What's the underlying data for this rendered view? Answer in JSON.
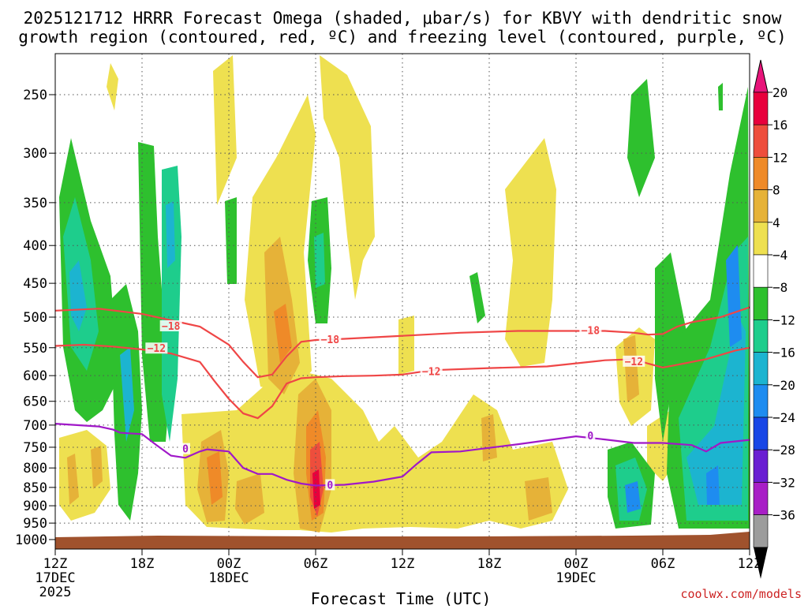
{
  "chart_data": {
    "type": "contour",
    "title_line1": "2025121712 HRRR Forecast Omega (shaded, μbar/s) for KBVY with dendritic snow",
    "title_line2": "growth region (contoured, red, ºC) and freezing level (contoured, purple, ºC)",
    "xlabel": "Forecast Time (UTC)",
    "credit": "coolwx.com/models",
    "xlim_hours": [
      0,
      48
    ],
    "ylim_hPa": [
      220,
      1030
    ],
    "x_ticks": [
      {
        "hour": 0,
        "label": "12Z",
        "date": "17DEC",
        "year": "2025"
      },
      {
        "hour": 6,
        "label": "18Z",
        "date": "",
        "year": ""
      },
      {
        "hour": 12,
        "label": "00Z",
        "date": "18DEC",
        "year": ""
      },
      {
        "hour": 18,
        "label": "06Z",
        "date": "",
        "year": ""
      },
      {
        "hour": 24,
        "label": "12Z",
        "date": "",
        "year": ""
      },
      {
        "hour": 30,
        "label": "18Z",
        "date": "",
        "year": ""
      },
      {
        "hour": 36,
        "label": "00Z",
        "date": "19DEC",
        "year": ""
      },
      {
        "hour": 42,
        "label": "06Z",
        "date": "",
        "year": ""
      },
      {
        "hour": 48,
        "label": "12Z",
        "date": "",
        "year": ""
      }
    ],
    "y_ticks": [
      250,
      300,
      350,
      400,
      450,
      500,
      550,
      600,
      650,
      700,
      750,
      800,
      850,
      900,
      950,
      1000
    ],
    "colorbar": {
      "levels": [
        20,
        16,
        12,
        8,
        4,
        -4,
        -8,
        -12,
        -16,
        -20,
        -24,
        -28,
        -32,
        -36
      ],
      "labels": [
        "20",
        "16",
        "12",
        "8",
        "4",
        "−4",
        "−8",
        "−12",
        "−16",
        "−20",
        "−24",
        "−28",
        "−32",
        "−36"
      ],
      "colors": [
        "#e8003c",
        "#ee4e3c",
        "#ef8a28",
        "#e6b238",
        "#eee050",
        "#ffffff",
        "#2ec02e",
        "#1ecd8c",
        "#1cb4d0",
        "#1e8cf0",
        "#1846e6",
        "#6a1ed2",
        "#a81ec6",
        "#9c9c9c"
      ],
      "top_color": "#e8147a",
      "bottom_color": "#000000"
    },
    "contours": {
      "isotherm_minus18": {
        "label": "−18",
        "color": "#ef4646",
        "points": [
          [
            0,
            490
          ],
          [
            3,
            487
          ],
          [
            6,
            495
          ],
          [
            8,
            505
          ],
          [
            10,
            515
          ],
          [
            12,
            545
          ],
          [
            13,
            575
          ],
          [
            14,
            603
          ],
          [
            15,
            598
          ],
          [
            16,
            565
          ],
          [
            17,
            540
          ],
          [
            18,
            537
          ],
          [
            20,
            535
          ],
          [
            24,
            530
          ],
          [
            28,
            525
          ],
          [
            32,
            522
          ],
          [
            36,
            522
          ],
          [
            38,
            522
          ],
          [
            40,
            525
          ],
          [
            41,
            528
          ],
          [
            42,
            527
          ],
          [
            43,
            515
          ],
          [
            44,
            508
          ],
          [
            46,
            500
          ],
          [
            48,
            485
          ]
        ],
        "label_points": [
          [
            8,
            515
          ],
          [
            19,
            537
          ],
          [
            37,
            522
          ]
        ]
      },
      "isotherm_minus12": {
        "label": "−12",
        "color": "#ef4646",
        "points": [
          [
            0,
            547
          ],
          [
            2,
            545
          ],
          [
            4,
            548
          ],
          [
            6,
            553
          ],
          [
            8,
            560
          ],
          [
            10,
            575
          ],
          [
            11,
            610
          ],
          [
            12,
            645
          ],
          [
            13,
            675
          ],
          [
            14,
            685
          ],
          [
            15,
            660
          ],
          [
            16,
            615
          ],
          [
            17,
            605
          ],
          [
            18,
            603
          ],
          [
            20,
            601
          ],
          [
            22,
            600
          ],
          [
            24,
            598
          ],
          [
            26,
            590
          ],
          [
            30,
            586
          ],
          [
            34,
            583
          ],
          [
            38,
            572
          ],
          [
            40,
            570
          ],
          [
            41,
            578
          ],
          [
            42,
            585
          ],
          [
            43,
            580
          ],
          [
            45,
            570
          ],
          [
            47,
            555
          ],
          [
            48,
            550
          ]
        ],
        "label_points": [
          [
            7,
            552
          ],
          [
            26,
            593
          ],
          [
            40,
            575
          ]
        ]
      },
      "isotherm_0": {
        "label": "0",
        "color": "#a018c8",
        "points": [
          [
            0,
            697
          ],
          [
            3,
            703
          ],
          [
            4,
            710
          ],
          [
            4.5,
            717
          ],
          [
            5,
            718
          ],
          [
            6,
            720
          ],
          [
            7,
            745
          ],
          [
            8,
            770
          ],
          [
            9,
            775
          ],
          [
            10,
            760
          ],
          [
            10.5,
            755
          ],
          [
            12,
            760
          ],
          [
            12.5,
            780
          ],
          [
            13,
            800
          ],
          [
            14,
            815
          ],
          [
            15,
            815
          ],
          [
            16,
            830
          ],
          [
            17,
            840
          ],
          [
            18,
            845
          ],
          [
            20,
            843
          ],
          [
            22,
            835
          ],
          [
            24,
            822
          ],
          [
            25,
            790
          ],
          [
            26,
            762
          ],
          [
            28,
            760
          ],
          [
            32,
            743
          ],
          [
            36,
            725
          ],
          [
            38,
            732
          ],
          [
            40,
            740
          ],
          [
            42,
            740
          ],
          [
            44,
            745
          ],
          [
            45,
            760
          ],
          [
            46,
            740
          ],
          [
            48,
            733
          ]
        ],
        "label_points": [
          [
            9,
            755
          ],
          [
            19,
            845
          ],
          [
            37,
            725
          ]
        ]
      }
    }
  }
}
